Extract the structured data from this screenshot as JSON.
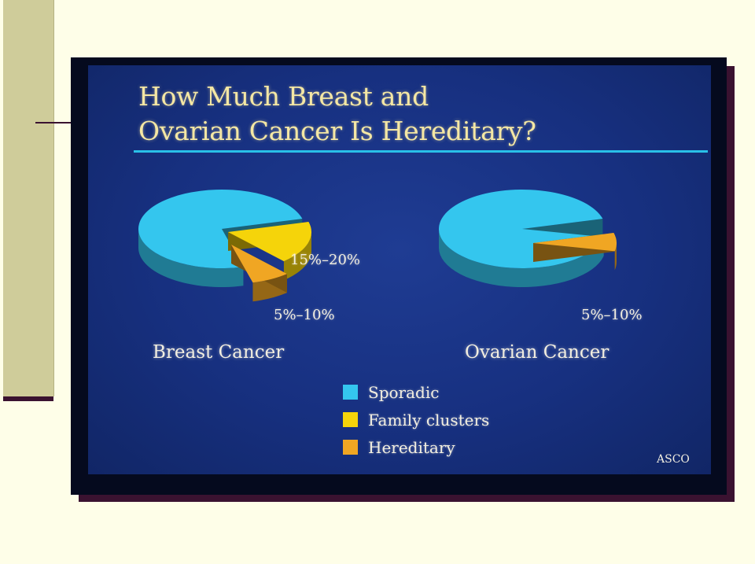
{
  "slide": {
    "title_line1": "How Much Breast and",
    "title_line2": "Ovarian Cancer Is Hereditary?",
    "credit": "ASCO"
  },
  "colors": {
    "sporadic": "#34c6ee",
    "family_clusters": "#f5d40a",
    "hereditary": "#f0a623",
    "slide_background": "#1a3384",
    "title_text": "#f4e7a4",
    "title_rule": "#29c0e8"
  },
  "legend": [
    {
      "label": "Sporadic",
      "key": "sporadic"
    },
    {
      "label": "Family clusters",
      "key": "family_clusters"
    },
    {
      "label": "Hereditary",
      "key": "hereditary"
    }
  ],
  "chart_data": [
    {
      "type": "pie",
      "title": "Breast Cancer",
      "slices": [
        {
          "name": "Sporadic",
          "key": "sporadic",
          "value": 75,
          "label": ""
        },
        {
          "name": "Family clusters",
          "key": "family_clusters",
          "value": 17.5,
          "label": "15%–20%"
        },
        {
          "name": "Hereditary",
          "key": "hereditary",
          "value": 7.5,
          "label": "5%–10%"
        }
      ]
    },
    {
      "type": "pie",
      "title": "Ovarian Cancer",
      "slices": [
        {
          "name": "Sporadic",
          "key": "sporadic",
          "value": 92.5,
          "label": ""
        },
        {
          "name": "Hereditary",
          "key": "hereditary",
          "value": 7.5,
          "label": "5%–10%"
        }
      ]
    }
  ]
}
